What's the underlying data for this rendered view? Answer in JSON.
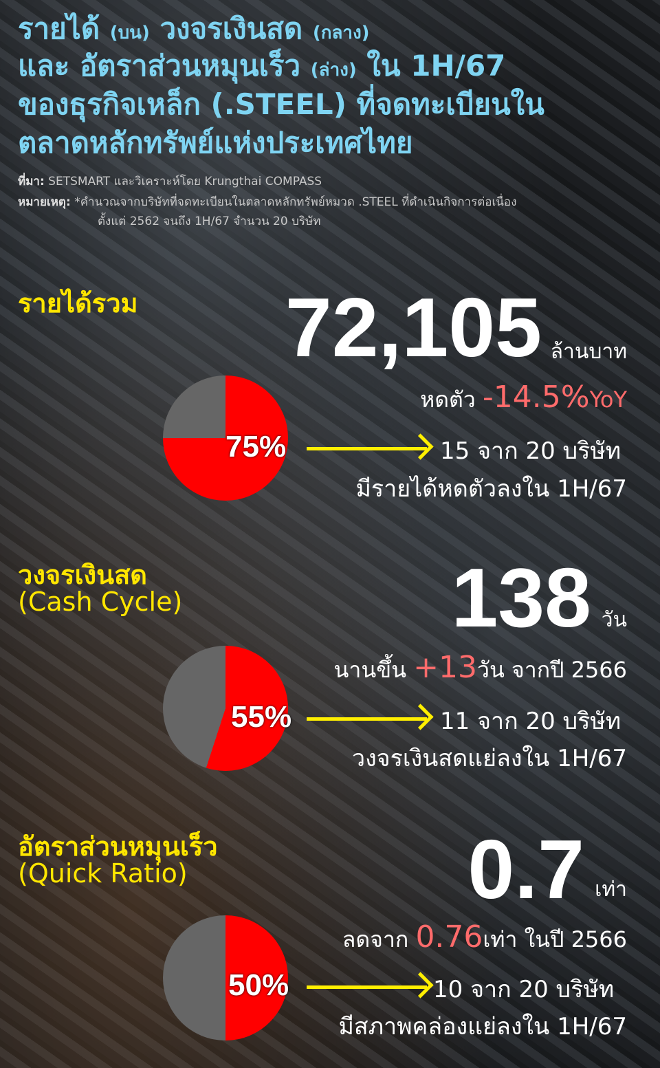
{
  "title": {
    "line1": "รายได้",
    "line1_small": "(บน)",
    "line1b": "วงจรเงินสด",
    "line1b_small": "(กลาง)",
    "line2": "และ อัตราส่วนหมุนเร็ว",
    "line2_small": "(ล่าง)",
    "line2b": "ใน 1H/67",
    "line3": "ของธุรกิจเหล็ก (.STEEL) ที่จดทะเบียนใน",
    "line4": "ตลาดหลักทรัพย์แห่งประเทศไทย"
  },
  "notes": {
    "source_label": "ที่มา:",
    "source": "SETSMART และวิเคราะห์โดย Krungthai COMPASS",
    "remark_label": "หมายเหตุ:",
    "remark1": "*คำนวณจากบริษัทที่จดทะเบียนในตลาดหลักทรัพย์หมวด .STEEL  ที่ดำเนินกิจการต่อเนื่อง",
    "remark2": "ตั้งแต่ 2562 จนถึง 1H/67 จำนวน 20 บริษัท"
  },
  "colors": {
    "title": "#7fd4f2",
    "heading": "#ffe600",
    "pie_red": "#ff0000",
    "pie_gray": "#666666",
    "accent": "#ff6b6b",
    "arrow": "#ffef00"
  },
  "sections": [
    {
      "heading": "รายได้รวม",
      "subheading": "",
      "value": "72,105",
      "unit": "ล้านบาท",
      "change_prefix": "หดตัว",
      "change": "-14.5%",
      "change_suffix": "YoY",
      "pie_percent": 75,
      "pie_label": "75%",
      "count": "15 จาก 20 บริษัท",
      "count_desc": "มีรายได้หดตัวลงใน 1H/67"
    },
    {
      "heading": "วงจรเงินสด",
      "subheading": "(Cash Cycle)",
      "value": "138",
      "unit": "วัน",
      "change_prefix": "นานขึ้น",
      "change": "+13",
      "change_suffix": "วัน จากปี 2566",
      "pie_percent": 55,
      "pie_label": "55%",
      "count": "11 จาก 20 บริษัท",
      "count_desc": "วงจรเงินสดแย่ลงใน 1H/67"
    },
    {
      "heading": "อัตราส่วนหมุนเร็ว",
      "subheading": "(Quick Ratio)",
      "value": "0.7",
      "unit": "เท่า",
      "change_prefix": "ลดจาก",
      "change": "0.76",
      "change_suffix": "เท่า ในปี 2566",
      "pie_percent": 50,
      "pie_label": "50%",
      "count": "10 จาก 20 บริษัท",
      "count_desc": "มีสภาพคล่องแย่ลงใน 1H/67"
    }
  ]
}
